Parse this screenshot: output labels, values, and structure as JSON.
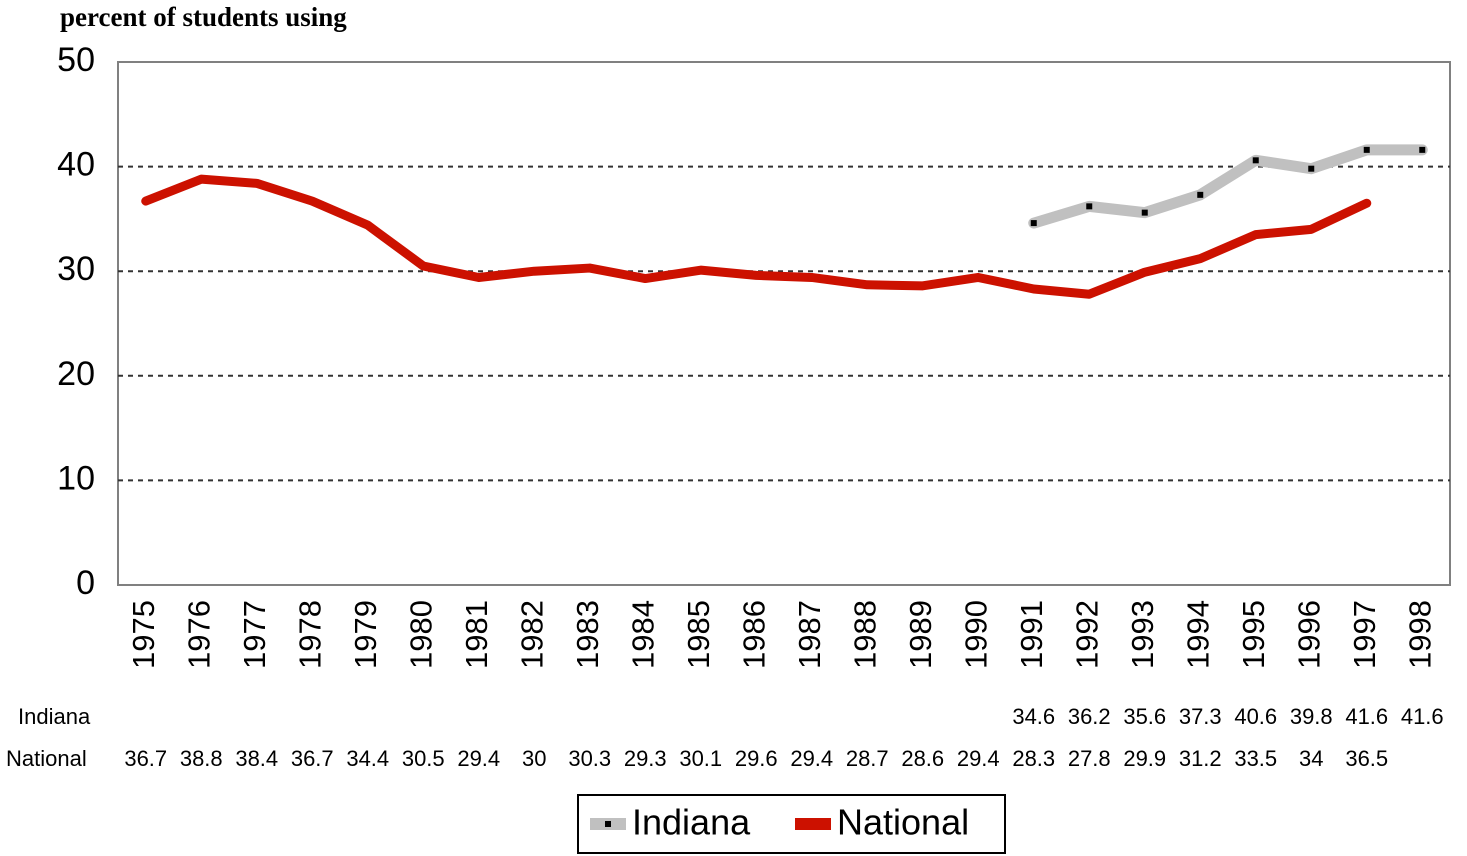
{
  "chart_data": {
    "type": "line",
    "y_axis_label": "percent of students using",
    "categories": [
      "1975",
      "1976",
      "1977",
      "1978",
      "1979",
      "1980",
      "1981",
      "1982",
      "1983",
      "1984",
      "1985",
      "1986",
      "1987",
      "1988",
      "1989",
      "1990",
      "1991",
      "1992",
      "1993",
      "1994",
      "1995",
      "1996",
      "1997",
      "1998"
    ],
    "series": [
      {
        "name": "Indiana",
        "color": "#c0c0c0",
        "values": [
          null,
          null,
          null,
          null,
          null,
          null,
          null,
          null,
          null,
          null,
          null,
          null,
          null,
          null,
          null,
          null,
          34.6,
          36.2,
          35.6,
          37.3,
          40.6,
          39.8,
          41.6,
          41.6
        ]
      },
      {
        "name": "National",
        "color": "#cc1100",
        "values": [
          36.7,
          38.8,
          38.4,
          36.7,
          34.4,
          30.5,
          29.4,
          30,
          30.3,
          29.3,
          30.1,
          29.6,
          29.4,
          28.7,
          28.6,
          29.4,
          28.3,
          27.8,
          29.9,
          31.2,
          33.5,
          34,
          36.5,
          null
        ]
      }
    ],
    "ylim": [
      0,
      50
    ],
    "yticks": [
      0,
      10,
      20,
      30,
      40,
      50
    ],
    "grid": true,
    "legend": "bottom",
    "data_table": true
  }
}
